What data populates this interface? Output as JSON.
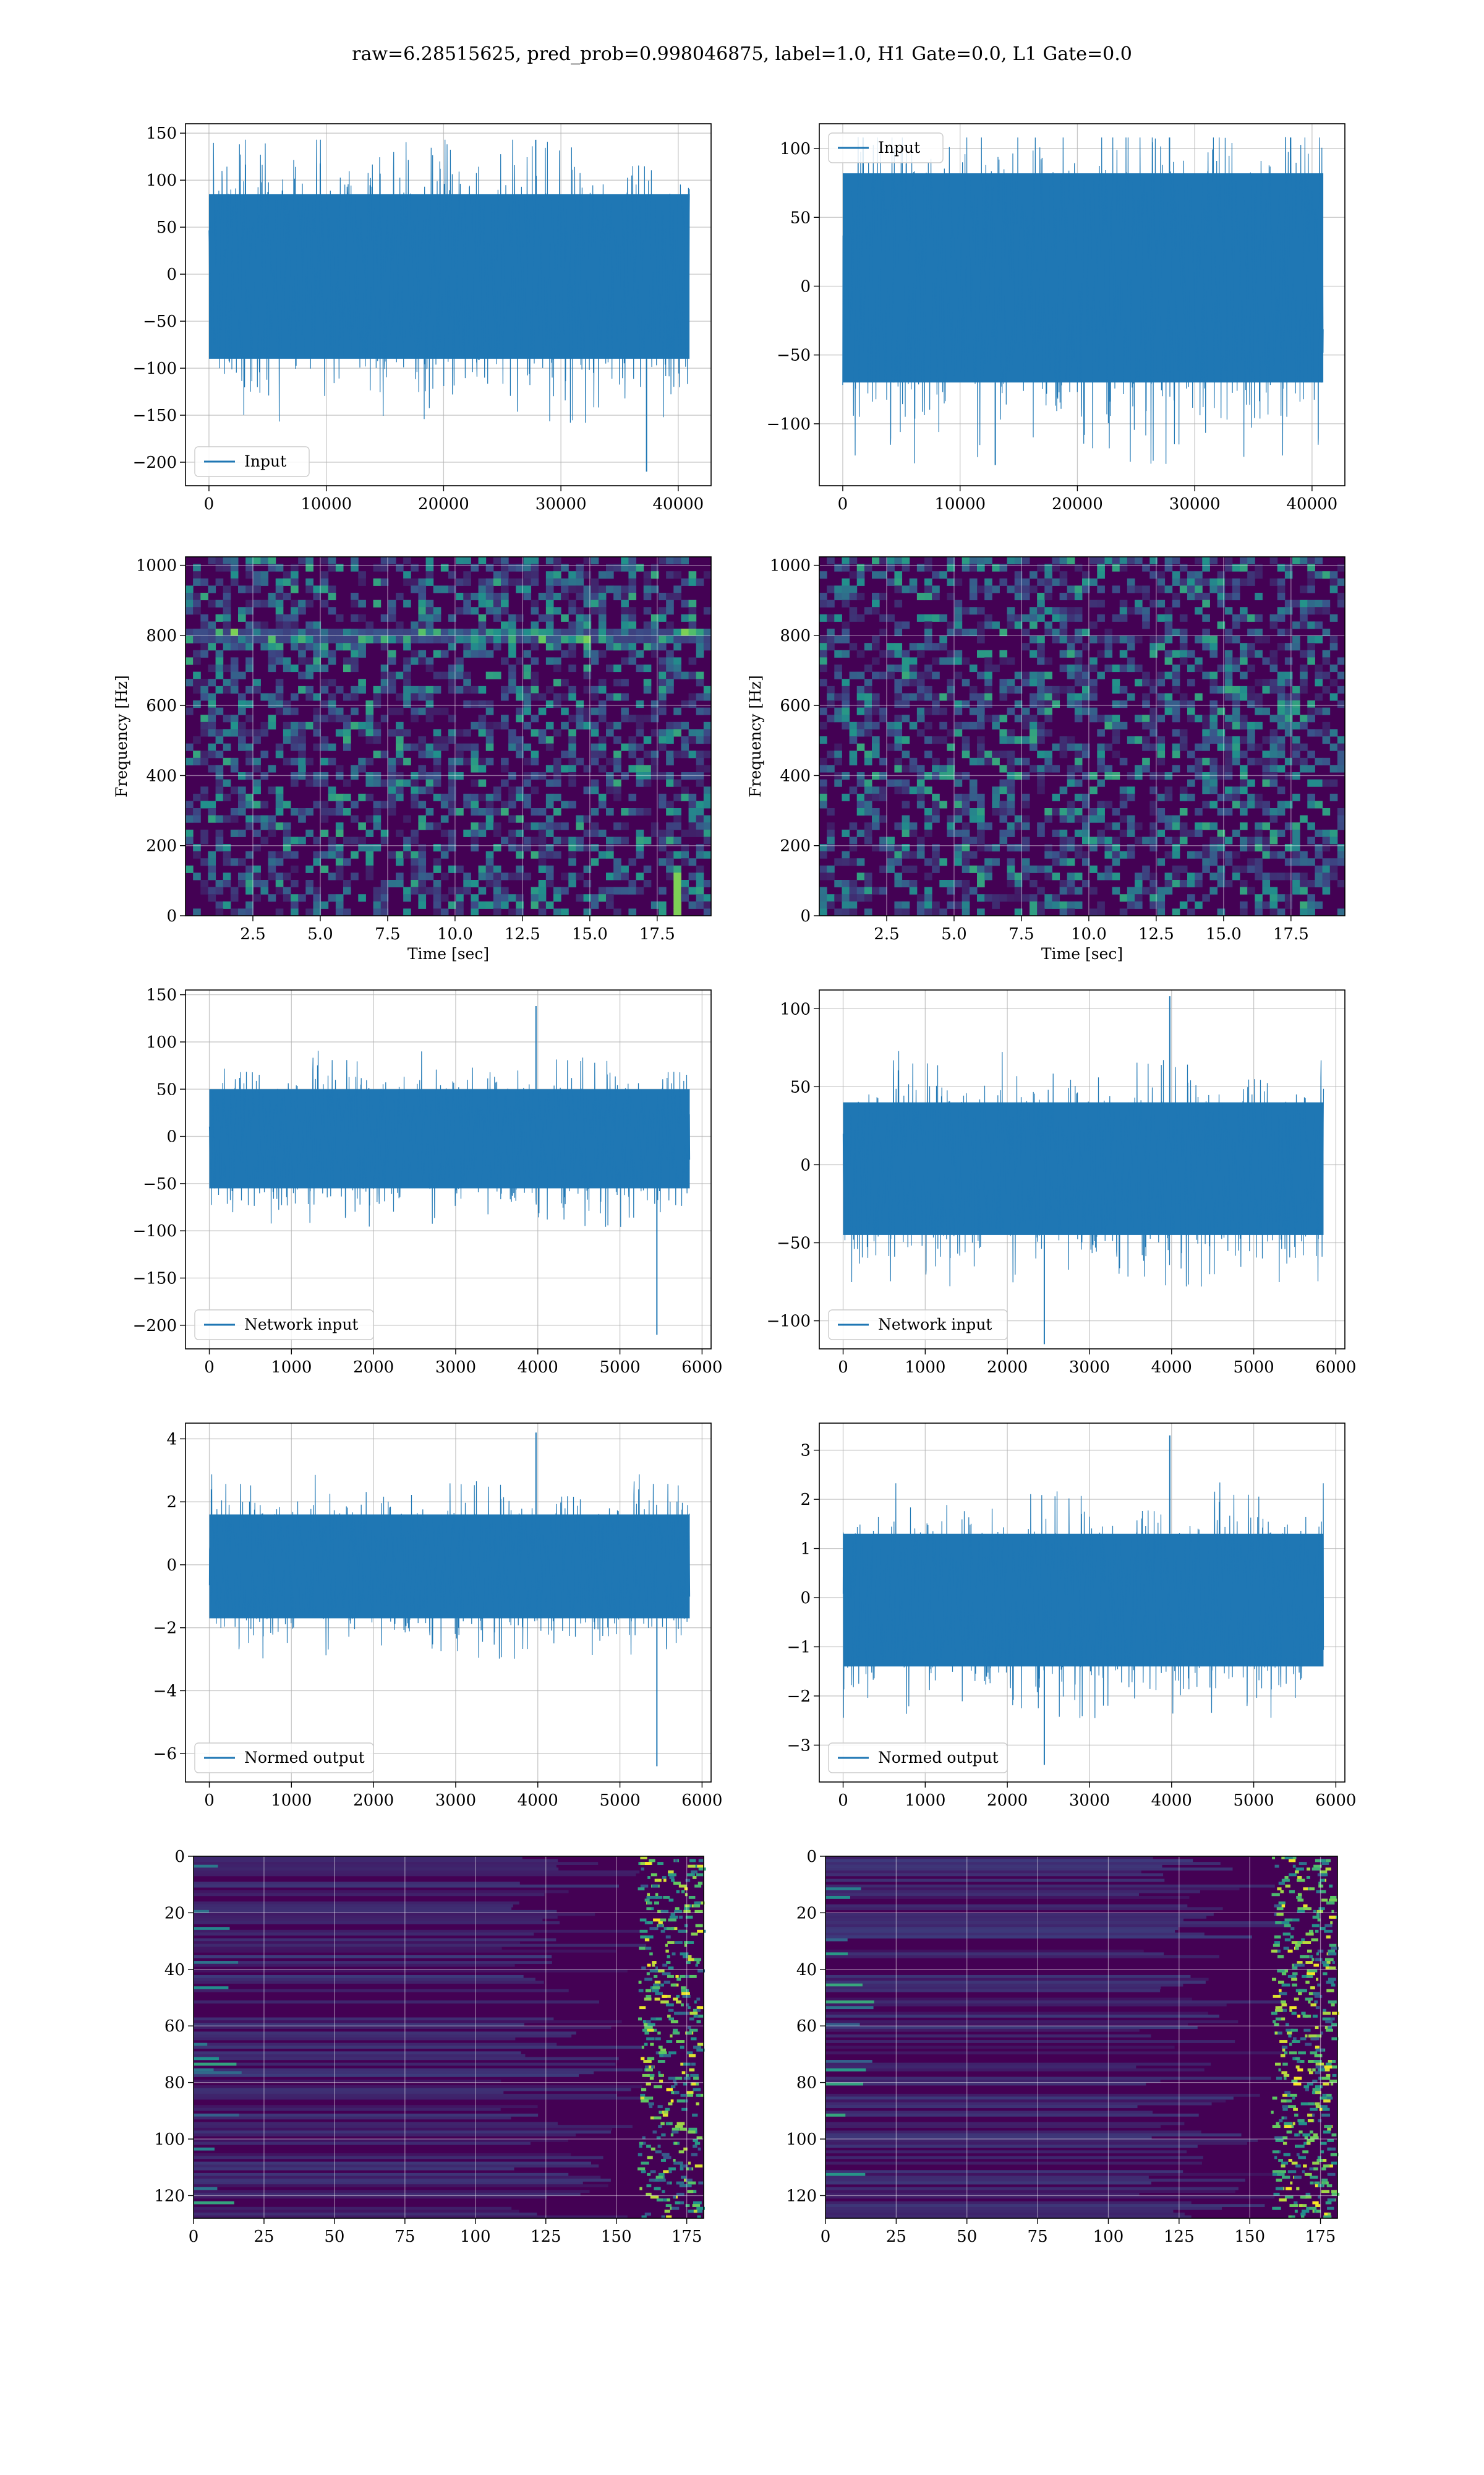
{
  "figure": {
    "title": "raw=6.28515625, pred_prob=0.998046875, label=1.0, H1 Gate=0.0, L1 Gate=0.0",
    "colors": {
      "line": "#1f77b4",
      "viridis_low": "#440154",
      "viridis_mid": "#3b528b",
      "viridis_teal": "#21918c",
      "viridis_green": "#5ec962",
      "viridis_high": "#fde725",
      "grid": "#b0b0b0"
    }
  },
  "chart_data": [
    {
      "id": "h1-input",
      "type": "line",
      "legend": "Input",
      "legend_loc": "lower-left",
      "xlim": [
        -2000,
        42800
      ],
      "ylim": [
        -225,
        160
      ],
      "xticks": [
        0,
        10000,
        20000,
        30000,
        40000
      ],
      "xtick_labels": [
        "0",
        "10000",
        "20000",
        "30000",
        "40000"
      ],
      "yticks": [
        150,
        100,
        50,
        0,
        -50,
        -100,
        -150,
        -200
      ],
      "ytick_labels": [
        "150",
        "100",
        "50",
        "0",
        "−50",
        "−100",
        "−150",
        "−200"
      ],
      "xlabel": "",
      "ylabel": "",
      "grid": true,
      "x_extent": [
        0,
        40960
      ],
      "band": [
        -90,
        85
      ],
      "peak_max": 143,
      "peak_min": -210,
      "min_at": 37300
    },
    {
      "id": "l1-input",
      "type": "line",
      "legend": "Input",
      "legend_loc": "upper-left",
      "xlim": [
        -2000,
        42800
      ],
      "ylim": [
        -145,
        118
      ],
      "xticks": [
        0,
        10000,
        20000,
        30000,
        40000
      ],
      "xtick_labels": [
        "0",
        "10000",
        "20000",
        "30000",
        "40000"
      ],
      "yticks": [
        100,
        50,
        0,
        -50,
        -100
      ],
      "ytick_labels": [
        "100",
        "50",
        "0",
        "−50",
        "−100"
      ],
      "xlabel": "",
      "ylabel": "",
      "grid": true,
      "x_extent": [
        0,
        40960
      ],
      "band": [
        -70,
        82
      ],
      "peak_max": 108,
      "peak_min": -130,
      "min_at": 13000
    },
    {
      "id": "h1-spectrogram",
      "type": "heatmap",
      "colormap": "viridis",
      "xlim": [
        0,
        19.5
      ],
      "ylim": [
        0,
        1024
      ],
      "xticks": [
        2.5,
        5.0,
        7.5,
        10.0,
        12.5,
        15.0,
        17.5
      ],
      "xtick_labels": [
        "2.5",
        "5.0",
        "7.5",
        "10.0",
        "12.5",
        "15.0",
        "17.5"
      ],
      "yticks": [
        0,
        200,
        400,
        600,
        800,
        1000
      ],
      "ytick_labels": [
        "0",
        "200",
        "400",
        "600",
        "800",
        "1000"
      ],
      "xlabel": "Time [sec]",
      "ylabel": "Frequency [Hz]",
      "grid": true
    },
    {
      "id": "l1-spectrogram",
      "type": "heatmap",
      "colormap": "viridis",
      "xlim": [
        0,
        19.5
      ],
      "ylim": [
        0,
        1024
      ],
      "xticks": [
        2.5,
        5.0,
        7.5,
        10.0,
        12.5,
        15.0,
        17.5
      ],
      "xtick_labels": [
        "2.5",
        "5.0",
        "7.5",
        "10.0",
        "12.5",
        "15.0",
        "17.5"
      ],
      "yticks": [
        0,
        200,
        400,
        600,
        800,
        1000
      ],
      "ytick_labels": [
        "0",
        "200",
        "400",
        "600",
        "800",
        "1000"
      ],
      "xlabel": "Time [sec]",
      "ylabel": "Frequency [Hz]",
      "grid": true
    },
    {
      "id": "h1-network-input",
      "type": "line",
      "legend": "Network input",
      "legend_loc": "lower-left",
      "xlim": [
        -290,
        6110
      ],
      "ylim": [
        -225,
        155
      ],
      "xticks": [
        0,
        1000,
        2000,
        3000,
        4000,
        5000,
        6000
      ],
      "xtick_labels": [
        "0",
        "1000",
        "2000",
        "3000",
        "4000",
        "5000",
        "6000"
      ],
      "yticks": [
        150,
        100,
        50,
        0,
        -50,
        -100,
        -150,
        -200
      ],
      "ytick_labels": [
        "150",
        "100",
        "50",
        "0",
        "−50",
        "−100",
        "−150",
        "−200"
      ],
      "xlabel": "",
      "ylabel": "",
      "grid": true,
      "x_extent": [
        0,
        5850
      ],
      "band": [
        -55,
        50
      ],
      "peak_max": 138,
      "peak_min": -210,
      "min_at": 5450
    },
    {
      "id": "l1-network-input",
      "type": "line",
      "legend": "Network input",
      "legend_loc": "lower-left",
      "xlim": [
        -290,
        6110
      ],
      "ylim": [
        -118,
        112
      ],
      "xticks": [
        0,
        1000,
        2000,
        3000,
        4000,
        5000,
        6000
      ],
      "xtick_labels": [
        "0",
        "1000",
        "2000",
        "3000",
        "4000",
        "5000",
        "6000"
      ],
      "yticks": [
        100,
        50,
        0,
        -50,
        -100
      ],
      "ytick_labels": [
        "100",
        "50",
        "0",
        "−50",
        "−100"
      ],
      "xlabel": "",
      "ylabel": "",
      "grid": true,
      "x_extent": [
        0,
        5850
      ],
      "band": [
        -45,
        40
      ],
      "peak_max": 108,
      "peak_min": -115,
      "min_at": 2450
    },
    {
      "id": "h1-normed-output",
      "type": "line",
      "legend": "Normed output",
      "legend_loc": "lower-left",
      "xlim": [
        -290,
        6110
      ],
      "ylim": [
        -6.9,
        4.5
      ],
      "xticks": [
        0,
        1000,
        2000,
        3000,
        4000,
        5000,
        6000
      ],
      "xtick_labels": [
        "0",
        "1000",
        "2000",
        "3000",
        "4000",
        "5000",
        "6000"
      ],
      "yticks": [
        4,
        2,
        0,
        -2,
        -4,
        -6
      ],
      "ytick_labels": [
        "4",
        "2",
        "0",
        "−2",
        "−4",
        "−6"
      ],
      "xlabel": "",
      "ylabel": "",
      "grid": true,
      "x_extent": [
        0,
        5850
      ],
      "band": [
        -1.7,
        1.6
      ],
      "peak_max": 4.2,
      "peak_min": -6.4,
      "min_at": 5450
    },
    {
      "id": "l1-normed-output",
      "type": "line",
      "legend": "Normed output",
      "legend_loc": "lower-left",
      "xlim": [
        -290,
        6110
      ],
      "ylim": [
        -3.75,
        3.55
      ],
      "xticks": [
        0,
        1000,
        2000,
        3000,
        4000,
        5000,
        6000
      ],
      "xtick_labels": [
        "0",
        "1000",
        "2000",
        "3000",
        "4000",
        "5000",
        "6000"
      ],
      "yticks": [
        3,
        2,
        1,
        0,
        -1,
        -2,
        -3
      ],
      "ytick_labels": [
        "3",
        "2",
        "1",
        "0",
        "−1",
        "−2",
        "−3"
      ],
      "xlabel": "",
      "ylabel": "",
      "grid": true,
      "x_extent": [
        0,
        5850
      ],
      "band": [
        -1.4,
        1.3
      ],
      "peak_max": 3.3,
      "peak_min": -3.4,
      "min_at": 2450
    },
    {
      "id": "h1-feature-map",
      "type": "heatmap",
      "colormap": "viridis",
      "xlim": [
        0,
        181
      ],
      "ylim": [
        128,
        0
      ],
      "xticks": [
        0,
        25,
        50,
        75,
        100,
        125,
        150,
        175
      ],
      "xtick_labels": [
        "0",
        "25",
        "50",
        "75",
        "100",
        "125",
        "150",
        "175"
      ],
      "yticks": [
        0,
        20,
        40,
        60,
        80,
        100,
        120
      ],
      "ytick_labels": [
        "0",
        "20",
        "40",
        "60",
        "80",
        "100",
        "120"
      ],
      "xlabel": "",
      "ylabel": "",
      "grid": true
    },
    {
      "id": "l1-feature-map",
      "type": "heatmap",
      "colormap": "viridis",
      "xlim": [
        0,
        181
      ],
      "ylim": [
        128,
        0
      ],
      "xticks": [
        0,
        25,
        50,
        75,
        100,
        125,
        150,
        175
      ],
      "xtick_labels": [
        "0",
        "25",
        "50",
        "75",
        "100",
        "125",
        "150",
        "175"
      ],
      "yticks": [
        0,
        20,
        40,
        60,
        80,
        100,
        120
      ],
      "ytick_labels": [
        "0",
        "20",
        "40",
        "60",
        "80",
        "100",
        "120"
      ],
      "xlabel": "",
      "ylabel": "",
      "grid": true
    }
  ]
}
